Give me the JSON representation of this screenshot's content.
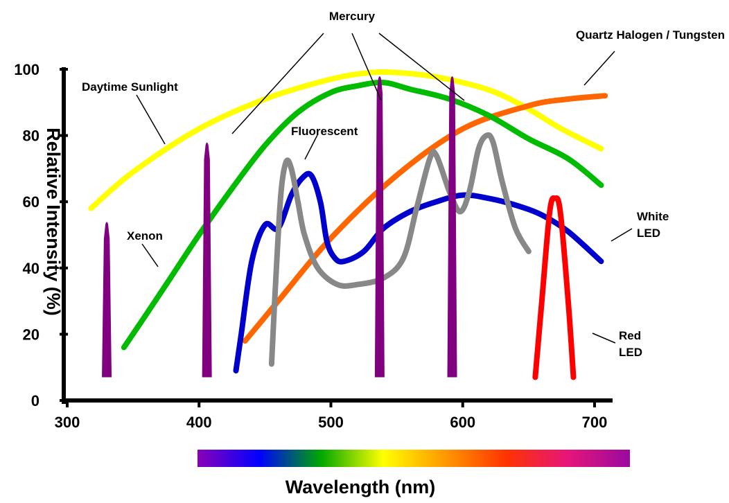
{
  "chart_data": {
    "type": "line",
    "title": "",
    "xlabel": "Wavelength (nm)",
    "ylabel": "Relative Intensity (%)",
    "xlim": [
      300,
      710
    ],
    "ylim": [
      0,
      100
    ],
    "x_ticks": [
      300,
      400,
      500,
      600,
      700
    ],
    "y_ticks": [
      0,
      20,
      40,
      60,
      80,
      100
    ],
    "grid": false,
    "series": [
      {
        "name": "Daytime Sunlight",
        "color": "#ffff00",
        "x": [
          318,
          350,
          400,
          450,
          500,
          530,
          550,
          575,
          600,
          625,
          650,
          675,
          705
        ],
        "y": [
          58,
          69,
          82,
          91,
          97,
          99,
          99,
          98,
          96,
          93,
          88,
          82,
          76
        ]
      },
      {
        "name": "Quartz Halogen / Tungsten",
        "color": "#ff6600",
        "x": [
          435,
          460,
          500,
          550,
          600,
          650,
          680,
          708
        ],
        "y": [
          18,
          30,
          49,
          68,
          82,
          89,
          91,
          92
        ]
      },
      {
        "name": "Xenon",
        "color": "#00bb00",
        "x": [
          343,
          360,
          380,
          400,
          425,
          450,
          475,
          500,
          520,
          540,
          560,
          590,
          620,
          650,
          680,
          705
        ],
        "y": [
          16,
          26,
          38,
          50,
          64,
          77,
          87,
          93,
          95,
          96,
          94,
          91,
          86,
          79,
          73,
          65
        ]
      },
      {
        "name": "White LED",
        "color": "#0000cc",
        "x": [
          428,
          432,
          440,
          450,
          460,
          470,
          478,
          485,
          492,
          497,
          503,
          510,
          525,
          540,
          560,
          580,
          600,
          620,
          640,
          660,
          680,
          705
        ],
        "y": [
          9,
          20,
          42,
          53,
          52,
          62,
          67,
          68,
          60,
          48,
          43,
          42,
          45,
          52,
          57,
          60,
          62,
          61,
          59,
          56,
          51,
          42
        ]
      },
      {
        "name": "Fluorescent",
        "color": "#888888",
        "x": [
          455,
          458,
          462,
          466,
          470,
          475,
          480,
          490,
          505,
          520,
          540,
          555,
          565,
          575,
          580,
          590,
          598,
          605,
          612,
          618,
          623,
          630,
          640,
          650
        ],
        "y": [
          11,
          35,
          62,
          72,
          70,
          60,
          50,
          40,
          35,
          35,
          37,
          43,
          58,
          73,
          74,
          63,
          57,
          63,
          76,
          80,
          78,
          66,
          52,
          45
        ]
      },
      {
        "name": "Red LED",
        "color": "#ff0000",
        "x": [
          655,
          660,
          666,
          670,
          674,
          680,
          684
        ],
        "y": [
          7,
          30,
          57,
          61,
          57,
          30,
          7
        ]
      },
      {
        "name": "Mercury",
        "color": "#800080",
        "peaks": [
          [
            330,
            54
          ],
          [
            406,
            78
          ],
          [
            537,
            98
          ],
          [
            592,
            98
          ]
        ],
        "baseline": 7
      }
    ],
    "annotations": [
      {
        "text": "Mercury"
      },
      {
        "text": "Quartz Halogen / Tungsten"
      },
      {
        "text": "Daytime Sunlight"
      },
      {
        "text": "Fluorescent"
      },
      {
        "text": "Xenon"
      },
      {
        "text": "White"
      },
      {
        "text": "LED"
      },
      {
        "text": "Red"
      },
      {
        "text": "LED"
      }
    ],
    "colorbar": {
      "stops": [
        "#8a00b8",
        "#0000ff",
        "#00a800",
        "#ffff00",
        "#ff9900",
        "#ff3300",
        "#e6157a",
        "#9a0aa0"
      ]
    }
  }
}
